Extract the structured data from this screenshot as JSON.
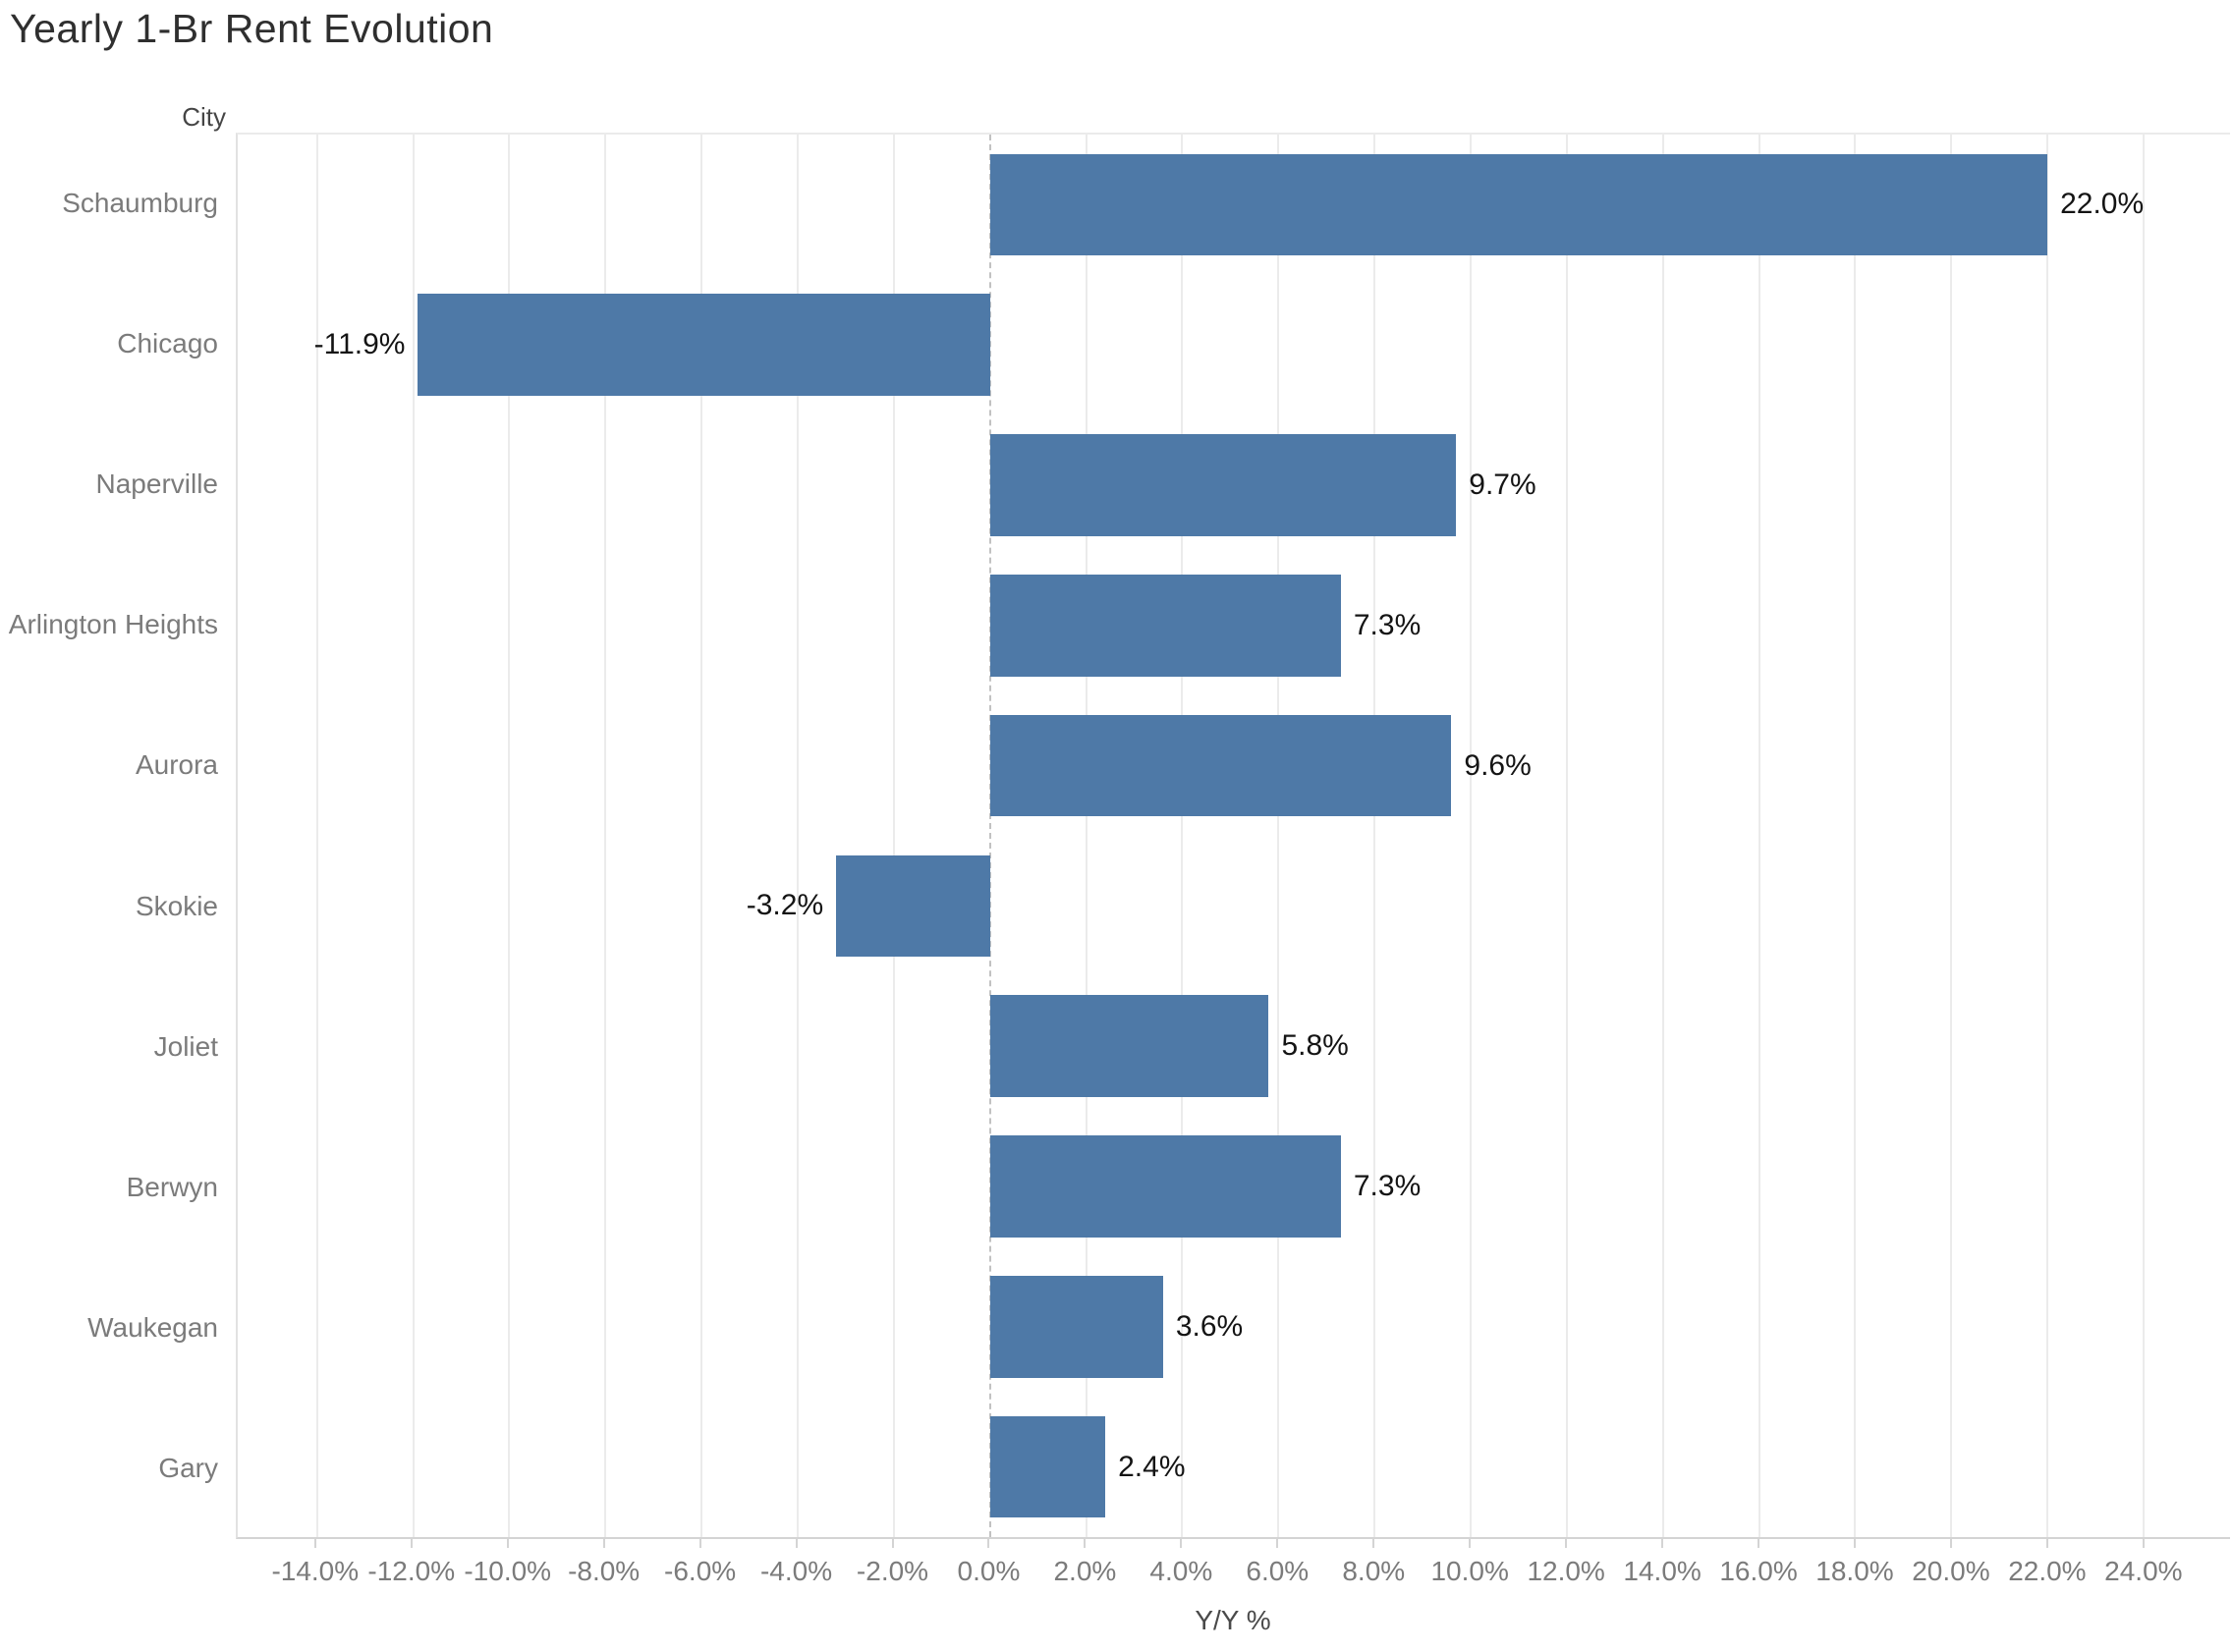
{
  "title": "Yearly 1-Br Rent Evolution",
  "row_header": "City",
  "colors": {
    "bar": "#4e79a7",
    "gridline": "#ebebeb",
    "zero_line": "#c2c2c2",
    "axis_line": "#d4d4d4",
    "tick_mark": "#d4d4d4",
    "value_label": "#141414",
    "axis_text": "#7b7b7b"
  },
  "chart_data": {
    "type": "bar",
    "orientation": "horizontal",
    "title": "Yearly 1-Br Rent Evolution",
    "xlabel": "Y/Y %",
    "ylabel": "City",
    "categories": [
      "Schaumburg",
      "Chicago",
      "Naperville",
      "Arlington Heights",
      "Aurora",
      "Skokie",
      "Joliet",
      "Berwyn",
      "Waukegan",
      "Gary"
    ],
    "values": [
      22.0,
      -11.9,
      9.7,
      7.3,
      9.6,
      -3.2,
      5.8,
      7.3,
      3.6,
      2.4
    ],
    "value_labels": [
      "22.0%",
      "-11.9%",
      "9.7%",
      "7.3%",
      "9.6%",
      "-3.2%",
      "5.8%",
      "7.3%",
      "3.6%",
      "2.4%"
    ],
    "xlim": [
      -15.65,
      25.8
    ],
    "grid": true,
    "zero_line": "dashed",
    "legend": "none",
    "x_ticks": [
      {
        "value": -14,
        "label": "-14.0%"
      },
      {
        "value": -12,
        "label": "-12.0%"
      },
      {
        "value": -10,
        "label": "-10.0%"
      },
      {
        "value": -8,
        "label": "-8.0%"
      },
      {
        "value": -6,
        "label": "-6.0%"
      },
      {
        "value": -4,
        "label": "-4.0%"
      },
      {
        "value": -2,
        "label": "-2.0%"
      },
      {
        "value": 0,
        "label": "0.0%"
      },
      {
        "value": 2,
        "label": "2.0%"
      },
      {
        "value": 4,
        "label": "4.0%"
      },
      {
        "value": 6,
        "label": "6.0%"
      },
      {
        "value": 8,
        "label": "8.0%"
      },
      {
        "value": 10,
        "label": "10.0%"
      },
      {
        "value": 12,
        "label": "12.0%"
      },
      {
        "value": 14,
        "label": "14.0%"
      },
      {
        "value": 16,
        "label": "16.0%"
      },
      {
        "value": 18,
        "label": "18.0%"
      },
      {
        "value": 20,
        "label": "20.0%"
      },
      {
        "value": 22,
        "label": "22.0%"
      },
      {
        "value": 24,
        "label": "24.0%"
      }
    ]
  }
}
